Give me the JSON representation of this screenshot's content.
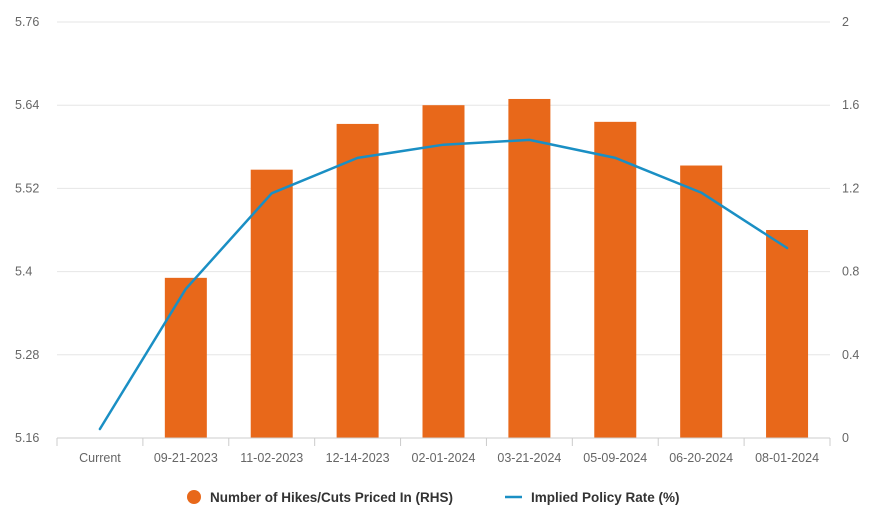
{
  "chart_data": {
    "type": "bar+line",
    "title": "",
    "xlabel": "",
    "ylabel": "",
    "categories": [
      "Current",
      "09-21-2023",
      "11-02-2023",
      "12-14-2023",
      "02-01-2024",
      "03-21-2024",
      "05-09-2024",
      "06-20-2024",
      "08-01-2024"
    ],
    "left_axis": {
      "ylim": [
        5.16,
        5.76
      ],
      "ticks": [
        "5.16",
        "5.28",
        "5.4",
        "5.52",
        "5.64",
        "5.76"
      ]
    },
    "right_axis": {
      "ylim": [
        0,
        2
      ],
      "ticks": [
        "0",
        "0.4",
        "0.8",
        "1.2",
        "1.6",
        "2"
      ]
    },
    "series": [
      {
        "name": "Number of Hikes/Cuts Priced In (RHS)",
        "type": "bar",
        "axis": "right",
        "color": "#E8681A",
        "values": [
          0,
          0.77,
          1.29,
          1.51,
          1.6,
          1.63,
          1.52,
          1.31,
          1.0
        ]
      },
      {
        "name": "Implied Policy Rate (%)",
        "type": "line",
        "axis": "left",
        "color": "#1A8FC4",
        "values": [
          5.173,
          5.375,
          5.513,
          5.564,
          5.583,
          5.59,
          5.564,
          5.514,
          5.434
        ]
      }
    ],
    "grid": true,
    "legend": "bottom-center"
  }
}
